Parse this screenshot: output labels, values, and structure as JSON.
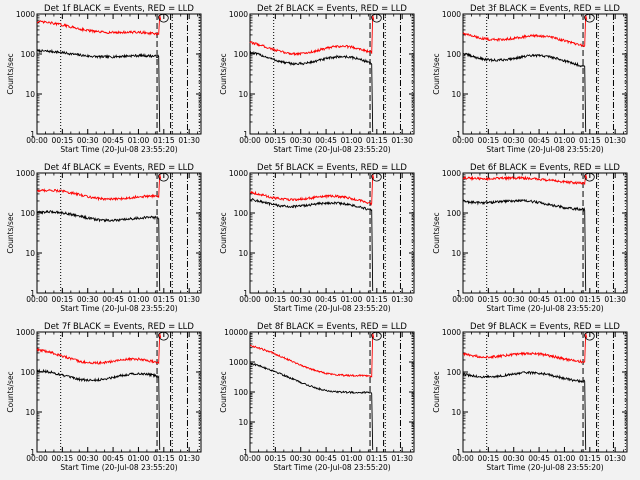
{
  "chart_data": [
    {
      "type": "line",
      "title": "Det 1f BLACK = Events, RED = LLD",
      "xlabel": "Start Time (20-Jul-08 23:55:20)",
      "ylabel": "Counts/sec",
      "yscale": "log",
      "ylim": [
        1,
        1000
      ],
      "xticks": [
        "00:00",
        "00:15",
        "00:30",
        "00:45",
        "01:00",
        "01:15",
        "01:30"
      ],
      "yticks": [
        "1",
        "10",
        "100",
        "1000"
      ],
      "x_start": "00:00",
      "x_end": "01:37",
      "events_end": "01:12",
      "series": [
        {
          "name": "Events",
          "color": "#000000",
          "start": 110,
          "end": 80,
          "amp": 0.04,
          "phase": 1.0
        },
        {
          "name": "LLD",
          "color": "#ff0000",
          "start": 580,
          "end": 280,
          "amp": 0.05,
          "phase": 1.0
        }
      ],
      "markers": {
        "dotted": [
          "00:14",
          "01:20",
          "01:36"
        ],
        "dashed": [
          "01:11",
          "01:19"
        ],
        "dashdot": [
          "01:29"
        ]
      }
    },
    {
      "type": "line",
      "title": "Det 2f BLACK = Events, RED = LLD",
      "xlabel": "Start Time (20-Jul-08 23:55:20)",
      "ylabel": "Counts/sec",
      "yscale": "log",
      "ylim": [
        1,
        1000
      ],
      "xticks": [
        "00:00",
        "00:15",
        "00:30",
        "00:45",
        "01:00",
        "01:15",
        "01:30"
      ],
      "yticks": [
        "1",
        "10",
        "100",
        "1000"
      ],
      "x_start": "00:00",
      "x_end": "01:37",
      "events_end": "01:12",
      "series": [
        {
          "name": "Events",
          "color": "#000000",
          "start": 85,
          "end": 60,
          "amp": 0.12,
          "phase": 2.0
        },
        {
          "name": "LLD",
          "color": "#ff0000",
          "start": 150,
          "end": 110,
          "amp": 0.12,
          "phase": 2.0
        }
      ],
      "markers": {
        "dotted": [
          "00:14",
          "01:20",
          "01:36"
        ],
        "dashed": [
          "01:11",
          "01:19"
        ],
        "dashdot": [
          "01:29"
        ]
      }
    },
    {
      "type": "line",
      "title": "Det 3f BLACK = Events, RED = LLD",
      "xlabel": "Start Time (20-Jul-08 23:55:20)",
      "ylabel": "Counts/sec",
      "yscale": "log",
      "ylim": [
        1,
        1000
      ],
      "xticks": [
        "00:00",
        "00:15",
        "00:30",
        "00:45",
        "01:00",
        "01:15",
        "01:30"
      ],
      "yticks": [
        "1",
        "10",
        "100",
        "1000"
      ],
      "x_start": "00:00",
      "x_end": "01:37",
      "events_end": "01:12",
      "series": [
        {
          "name": "Events",
          "color": "#000000",
          "start": 100,
          "end": 60,
          "amp": 0.1,
          "phase": 3.0
        },
        {
          "name": "LLD",
          "color": "#ff0000",
          "start": 320,
          "end": 190,
          "amp": 0.09,
          "phase": 3.0
        }
      ],
      "markers": {
        "dotted": [
          "00:14",
          "01:20",
          "01:36"
        ],
        "dashed": [
          "01:11",
          "01:19"
        ],
        "dashdot": [
          "01:29"
        ]
      }
    },
    {
      "type": "line",
      "title": "Det 4f BLACK = Events, RED = LLD",
      "xlabel": "Start Time (20-Jul-08 23:55:20)",
      "ylabel": "Counts/sec",
      "yscale": "log",
      "ylim": [
        1,
        1000
      ],
      "xticks": [
        "00:00",
        "00:15",
        "00:30",
        "00:45",
        "01:00",
        "01:15",
        "01:30"
      ],
      "yticks": [
        "1",
        "10",
        "100",
        "1000"
      ],
      "x_start": "00:00",
      "x_end": "01:37",
      "events_end": "01:12",
      "series": [
        {
          "name": "Events",
          "color": "#000000",
          "start": 95,
          "end": 65,
          "amp": 0.07,
          "phase": 0.5
        },
        {
          "name": "LLD",
          "color": "#ff0000",
          "start": 330,
          "end": 220,
          "amp": 0.07,
          "phase": 0.5
        }
      ],
      "markers": {
        "dotted": [
          "00:14",
          "01:20",
          "01:36"
        ],
        "dashed": [
          "01:11",
          "01:19"
        ],
        "dashdot": [
          "01:29"
        ]
      }
    },
    {
      "type": "line",
      "title": "Det 5f BLACK = Events, RED = LLD",
      "xlabel": "Start Time (20-Jul-08 23:55:20)",
      "ylabel": "Counts/sec",
      "yscale": "log",
      "ylim": [
        1,
        1000
      ],
      "xticks": [
        "00:00",
        "00:15",
        "00:30",
        "00:45",
        "01:00",
        "01:15",
        "01:30"
      ],
      "yticks": [
        "1",
        "10",
        "100",
        "1000"
      ],
      "x_start": "00:00",
      "x_end": "01:37",
      "events_end": "01:12",
      "series": [
        {
          "name": "Events",
          "color": "#000000",
          "start": 200,
          "end": 130,
          "amp": 0.08,
          "phase": 2.5
        },
        {
          "name": "LLD",
          "color": "#ff0000",
          "start": 300,
          "end": 190,
          "amp": 0.08,
          "phase": 2.5
        }
      ],
      "markers": {
        "dotted": [
          "00:14",
          "01:20",
          "01:36"
        ],
        "dashed": [
          "01:11",
          "01:19"
        ],
        "dashdot": [
          "01:29"
        ]
      }
    },
    {
      "type": "line",
      "title": "Det 6f BLACK = Events, RED = LLD",
      "xlabel": "Start Time (20-Jul-08 23:55:20)",
      "ylabel": "Counts/sec",
      "yscale": "log",
      "ylim": [
        1,
        1000
      ],
      "xticks": [
        "00:00",
        "00:15",
        "00:30",
        "00:45",
        "01:00",
        "01:15",
        "01:30"
      ],
      "yticks": [
        "1",
        "10",
        "100",
        "1000"
      ],
      "x_start": "00:00",
      "x_end": "01:37",
      "events_end": "01:12",
      "series": [
        {
          "name": "Events",
          "color": "#000000",
          "start": 220,
          "end": 140,
          "amp": 0.06,
          "phase": 4.0
        },
        {
          "name": "LLD",
          "color": "#ff0000",
          "start": 800,
          "end": 600,
          "amp": 0.03,
          "phase": 4.0
        }
      ],
      "markers": {
        "dotted": [
          "00:14",
          "01:20",
          "01:36"
        ],
        "dashed": [
          "01:11",
          "01:19"
        ],
        "dashdot": [
          "01:29"
        ]
      }
    },
    {
      "type": "line",
      "title": "Det 7f BLACK = Events, RED = LLD",
      "xlabel": "Start Time (20-Jul-08 23:55:20)",
      "ylabel": "Counts/sec",
      "yscale": "log",
      "ylim": [
        1,
        1000
      ],
      "xticks": [
        "00:00",
        "00:15",
        "00:30",
        "00:45",
        "01:00",
        "01:15",
        "01:30"
      ],
      "yticks": [
        "1",
        "10",
        "100",
        "1000"
      ],
      "x_start": "00:00",
      "x_end": "01:37",
      "events_end": "01:12",
      "series": [
        {
          "name": "Events",
          "color": "#000000",
          "start": 85,
          "end": 70,
          "amp": 0.1,
          "phase": 1.5
        },
        {
          "name": "LLD",
          "color": "#ff0000",
          "start": 280,
          "end": 150,
          "amp": 0.1,
          "phase": 1.5
        }
      ],
      "markers": {
        "dotted": [
          "00:14",
          "01:20",
          "01:36"
        ],
        "dashed": [
          "01:11",
          "01:19"
        ],
        "dashdot": [
          "01:29"
        ]
      }
    },
    {
      "type": "line",
      "title": "Det 8f BLACK = Events, RED = LLD",
      "xlabel": "Start Time (20-Jul-08 23:55:20)",
      "ylabel": "Counts/sec",
      "yscale": "log",
      "ylim": [
        1,
        10000
      ],
      "xticks": [
        "00:00",
        "00:15",
        "00:30",
        "00:45",
        "01:00",
        "01:15",
        "01:30"
      ],
      "yticks": [
        "1",
        "10",
        "100",
        "1000",
        "10000"
      ],
      "x_start": "00:00",
      "x_end": "01:37",
      "events_end": "01:12",
      "series": [
        {
          "name": "Events",
          "color": "#000000",
          "start": 900,
          "end": 70,
          "amp": 0.06,
          "phase": 0.2,
          "decay": true
        },
        {
          "name": "LLD",
          "color": "#ff0000",
          "start": 3500,
          "end": 250,
          "amp": 0.06,
          "phase": 0.2,
          "decay": true
        }
      ],
      "markers": {
        "dotted": [
          "00:14",
          "01:20",
          "01:36"
        ],
        "dashed": [
          "01:11",
          "01:19"
        ],
        "dashdot": [
          "01:29"
        ]
      }
    },
    {
      "type": "line",
      "title": "Det 9f BLACK = Events, RED = LLD",
      "xlabel": "Start Time (20-Jul-08 23:55:20)",
      "ylabel": "Counts/sec",
      "yscale": "log",
      "ylim": [
        1,
        1000
      ],
      "xticks": [
        "00:00",
        "00:15",
        "00:30",
        "00:45",
        "01:00",
        "01:15",
        "01:30"
      ],
      "yticks": [
        "1",
        "10",
        "100",
        "1000"
      ],
      "x_start": "00:00",
      "x_end": "01:37",
      "events_end": "01:12",
      "series": [
        {
          "name": "Events",
          "color": "#000000",
          "start": 95,
          "end": 70,
          "amp": 0.08,
          "phase": 3.5
        },
        {
          "name": "LLD",
          "color": "#ff0000",
          "start": 300,
          "end": 210,
          "amp": 0.07,
          "phase": 3.5
        }
      ],
      "markers": {
        "dotted": [
          "00:14",
          "01:20",
          "01:36"
        ],
        "dashed": [
          "01:11",
          "01:19"
        ],
        "dashdot": [
          "01:29"
        ]
      }
    }
  ]
}
